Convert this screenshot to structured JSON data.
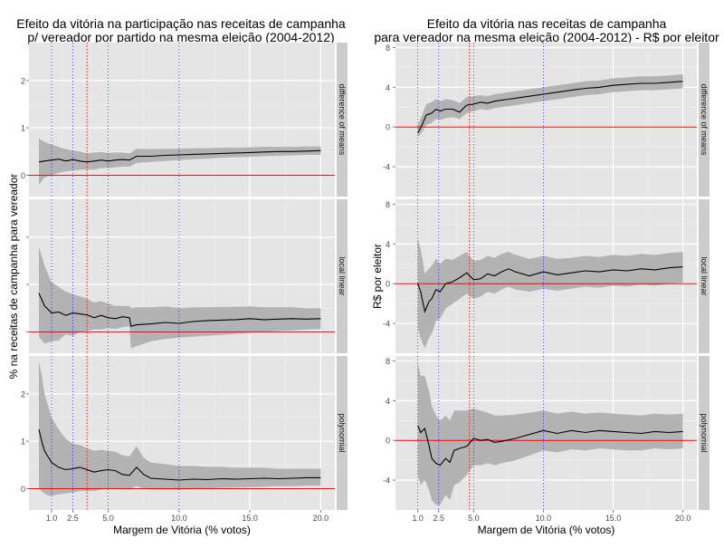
{
  "colors": {
    "panel_bg": "#e5e5e5",
    "grid_major": "#ffffff",
    "grid_minor": "#f2f2f2",
    "strip_bg": "#cccccc",
    "ribbon": "#b3b3b3",
    "line": "#000000",
    "ref_line": "#ff0000",
    "blue_vline": "#4444ff",
    "red_vline": "#ff0000",
    "tick_text": "#4d4d4d"
  },
  "chart_data": [
    {
      "type": "line",
      "title_line1": "Efeito da vitória na participação nas receitas de campanha",
      "title_line2": "p/ vereador por partido na mesma eleição (2004-2012)",
      "xlabel": "Margem de Vitória (% votos)",
      "ylabel": "% na receitas de campanha para vereador",
      "xlim": [
        -0.6,
        21.0
      ],
      "x_ticks": [
        1.0,
        2.5,
        5.0,
        10.0,
        15.0,
        20.0
      ],
      "x_tick_labels": [
        "1.0",
        "2.5",
        "5.0",
        "10.0",
        "15.0",
        "20.0"
      ],
      "blue_vlines": [
        1.0,
        2.5,
        5.0,
        10.0
      ],
      "red_vlines": [
        3.5
      ],
      "hline": 0,
      "panels": [
        {
          "strip": "difference of means",
          "ylim": [
            -0.45,
            2.8
          ],
          "y_ticks": [
            0,
            1,
            2
          ],
          "y_tick_labels": [
            "0",
            "1",
            "2"
          ],
          "x": [
            0.1,
            0.5,
            1,
            1.5,
            2,
            2.5,
            3,
            3.5,
            4,
            4.5,
            5,
            5.5,
            6,
            6.5,
            7,
            8,
            9,
            10,
            11,
            12,
            13,
            14,
            15,
            16,
            17,
            18,
            19,
            20
          ],
          "y": [
            0.28,
            0.3,
            0.32,
            0.34,
            0.3,
            0.33,
            0.3,
            0.28,
            0.3,
            0.32,
            0.3,
            0.32,
            0.33,
            0.32,
            0.4,
            0.4,
            0.42,
            0.43,
            0.44,
            0.45,
            0.46,
            0.47,
            0.48,
            0.49,
            0.5,
            0.5,
            0.51,
            0.52
          ],
          "lower": [
            -0.2,
            -0.05,
            0.0,
            0.05,
            0.08,
            0.1,
            0.12,
            0.12,
            0.12,
            0.15,
            0.15,
            0.17,
            0.18,
            0.18,
            0.26,
            0.28,
            0.3,
            0.32,
            0.34,
            0.35,
            0.37,
            0.38,
            0.39,
            0.4,
            0.41,
            0.42,
            0.43,
            0.43
          ],
          "upper": [
            0.78,
            0.7,
            0.65,
            0.6,
            0.55,
            0.52,
            0.5,
            0.46,
            0.48,
            0.49,
            0.47,
            0.48,
            0.48,
            0.46,
            0.56,
            0.55,
            0.56,
            0.56,
            0.57,
            0.57,
            0.58,
            0.58,
            0.59,
            0.6,
            0.6,
            0.6,
            0.61,
            0.61
          ]
        },
        {
          "strip": "local linear",
          "ylim": [
            -0.45,
            2.8
          ],
          "y_ticks": [
            0,
            1,
            2
          ],
          "y_tick_labels": [
            "",
            "",
            ""
          ],
          "x": [
            0.1,
            0.5,
            1,
            1.5,
            2,
            2.5,
            3,
            3.5,
            4,
            4.5,
            5,
            5.5,
            6,
            6.5,
            6.6,
            7,
            8,
            9,
            10,
            11,
            12,
            13,
            14,
            15,
            16,
            17,
            18,
            19,
            20
          ],
          "y": [
            0.82,
            0.55,
            0.4,
            0.42,
            0.35,
            0.4,
            0.38,
            0.36,
            0.3,
            0.35,
            0.3,
            0.28,
            0.32,
            0.3,
            0.12,
            0.15,
            0.17,
            0.2,
            0.18,
            0.22,
            0.24,
            0.25,
            0.26,
            0.28,
            0.26,
            0.27,
            0.28,
            0.27,
            0.28
          ],
          "lower": [
            -0.1,
            -0.25,
            -0.2,
            -0.18,
            -0.05,
            -0.08,
            0.0,
            0.02,
            0.05,
            0.05,
            0.08,
            0.06,
            0.1,
            0.12,
            -0.35,
            -0.3,
            -0.2,
            -0.15,
            -0.12,
            -0.1,
            -0.08,
            -0.06,
            -0.04,
            -0.02,
            0.0,
            0.02,
            0.03,
            0.05,
            0.06
          ],
          "upper": [
            1.8,
            1.4,
            1.05,
            0.95,
            0.85,
            0.8,
            0.75,
            0.7,
            0.62,
            0.65,
            0.6,
            0.55,
            0.55,
            0.55,
            0.5,
            0.52,
            0.52,
            0.54,
            0.5,
            0.52,
            0.52,
            0.53,
            0.53,
            0.54,
            0.52,
            0.52,
            0.52,
            0.5,
            0.5
          ]
        },
        {
          "strip": "polynomial",
          "ylim": [
            -0.45,
            2.8
          ],
          "y_ticks": [
            0,
            1,
            2
          ],
          "y_tick_labels": [
            "0",
            "1",
            "2"
          ],
          "x": [
            0.1,
            0.3,
            0.5,
            0.8,
            1,
            1.5,
            2,
            2.5,
            3,
            3.5,
            4,
            4.5,
            5,
            5.5,
            6,
            6.5,
            7,
            7.5,
            8,
            9,
            10,
            11,
            12,
            13,
            14,
            15,
            16,
            17,
            18,
            19,
            20
          ],
          "y": [
            1.25,
            1.0,
            0.8,
            0.65,
            0.55,
            0.45,
            0.4,
            0.42,
            0.45,
            0.4,
            0.35,
            0.38,
            0.4,
            0.38,
            0.3,
            0.28,
            0.45,
            0.3,
            0.22,
            0.2,
            0.18,
            0.2,
            0.19,
            0.21,
            0.2,
            0.21,
            0.22,
            0.21,
            0.22,
            0.23,
            0.23
          ],
          "lower": [
            0.0,
            -0.05,
            -0.1,
            -0.15,
            -0.15,
            -0.12,
            -0.1,
            -0.08,
            -0.05,
            -0.05,
            -0.05,
            -0.02,
            0.0,
            0.0,
            0.0,
            -0.02,
            0.05,
            0.0,
            -0.02,
            -0.02,
            -0.02,
            0.0,
            0.0,
            0.02,
            0.02,
            0.03,
            0.04,
            0.05,
            0.05,
            0.06,
            0.06
          ],
          "upper": [
            2.7,
            2.4,
            2.0,
            1.7,
            1.5,
            1.25,
            1.05,
            0.95,
            0.92,
            0.85,
            0.8,
            0.82,
            0.8,
            0.78,
            0.7,
            0.68,
            0.9,
            0.65,
            0.55,
            0.52,
            0.48,
            0.48,
            0.46,
            0.46,
            0.44,
            0.44,
            0.44,
            0.42,
            0.42,
            0.42,
            0.42
          ]
        }
      ]
    },
    {
      "type": "line",
      "title_line1": "Efeito da vitória nas receitas de campanha",
      "title_line2": "para vereador na mesma eleição (2004-2012) - R$ por eleitor",
      "xlabel": "Margem de Vitória (% votos)",
      "ylabel": "R$ por eleitor",
      "xlim": [
        -0.6,
        21.0
      ],
      "x_ticks": [
        1.0,
        2.5,
        5.0,
        10.0,
        15.0,
        20.0
      ],
      "x_tick_labels": [
        "1.0",
        "2.5",
        "5.0",
        "10.0",
        "15.0",
        "20.0"
      ],
      "blue_vlines": [
        1.0,
        2.5,
        5.0,
        10.0
      ],
      "red_vlines": [
        4.7
      ],
      "hline": 0,
      "panels": [
        {
          "strip": "difference of means",
          "ylim": [
            -7.0,
            8.5
          ],
          "y_ticks": [
            -4,
            0,
            4,
            8
          ],
          "y_tick_labels": [
            "-4",
            "0",
            "4",
            "8"
          ],
          "x": [
            1,
            1.3,
            1.6,
            2,
            2.3,
            2.6,
            3,
            3.5,
            4,
            4.5,
            5,
            5.5,
            6,
            6.5,
            7,
            7.5,
            8,
            9,
            10,
            11,
            12,
            13,
            14,
            15,
            16,
            17,
            18,
            19,
            20
          ],
          "y": [
            -0.6,
            0.2,
            1.2,
            1.4,
            1.8,
            1.6,
            1.8,
            1.8,
            1.5,
            2.2,
            2.3,
            2.5,
            2.4,
            2.6,
            2.7,
            2.8,
            2.9,
            3.1,
            3.3,
            3.5,
            3.7,
            3.9,
            4.0,
            4.2,
            4.3,
            4.4,
            4.4,
            4.5,
            4.6
          ],
          "lower": [
            -1.0,
            -0.5,
            0.2,
            0.4,
            0.8,
            0.7,
            0.9,
            1.0,
            0.8,
            1.4,
            1.6,
            1.8,
            1.7,
            1.9,
            2.0,
            2.1,
            2.2,
            2.4,
            2.6,
            2.8,
            3.0,
            3.2,
            3.3,
            3.5,
            3.6,
            3.7,
            3.7,
            3.8,
            3.9
          ],
          "upper": [
            0.2,
            1.2,
            2.3,
            2.5,
            2.8,
            2.6,
            2.8,
            2.7,
            2.4,
            3.0,
            3.1,
            3.2,
            3.1,
            3.3,
            3.4,
            3.5,
            3.6,
            3.8,
            4.0,
            4.2,
            4.4,
            4.6,
            4.7,
            4.9,
            5.0,
            5.1,
            5.1,
            5.2,
            5.3
          ]
        },
        {
          "strip": "local linear",
          "ylim": [
            -7.0,
            8.5
          ],
          "y_ticks": [
            -4,
            0,
            4,
            8
          ],
          "y_tick_labels": [
            "-4",
            "0",
            "4",
            "8"
          ],
          "x": [
            1,
            1.2,
            1.5,
            1.8,
            2,
            2.3,
            2.6,
            3,
            3.5,
            4,
            4.5,
            5,
            5.5,
            6,
            6.5,
            7,
            7.5,
            8,
            9,
            10,
            11,
            12,
            13,
            14,
            15,
            16,
            17,
            18,
            19,
            20
          ],
          "y": [
            0.0,
            -0.8,
            -2.8,
            -1.8,
            -1.5,
            -0.6,
            -0.8,
            0.0,
            0.2,
            0.6,
            1.1,
            0.4,
            0.5,
            1.0,
            0.8,
            1.2,
            1.5,
            1.2,
            0.8,
            1.2,
            0.9,
            1.1,
            1.3,
            1.2,
            1.4,
            1.3,
            1.5,
            1.4,
            1.6,
            1.7
          ],
          "lower": [
            -4.5,
            -5.5,
            -6.5,
            -5.5,
            -5.0,
            -3.8,
            -3.5,
            -2.5,
            -2.0,
            -1.5,
            -1.0,
            -1.5,
            -1.3,
            -0.8,
            -1.0,
            -0.6,
            -0.3,
            -0.6,
            -0.8,
            -0.5,
            -0.7,
            -0.5,
            -0.3,
            -0.4,
            -0.2,
            -0.3,
            -0.1,
            -0.2,
            0.0,
            0.1
          ],
          "upper": [
            4.5,
            3.5,
            1.0,
            1.5,
            1.8,
            2.5,
            2.0,
            2.5,
            2.4,
            2.8,
            3.2,
            2.3,
            2.4,
            2.8,
            2.6,
            3.0,
            3.2,
            2.9,
            2.5,
            2.8,
            2.5,
            2.6,
            2.8,
            2.7,
            2.9,
            2.8,
            3.0,
            2.9,
            3.1,
            3.2
          ]
        },
        {
          "strip": "polynomial",
          "ylim": [
            -7.0,
            8.5
          ],
          "y_ticks": [
            -4,
            0,
            4,
            8
          ],
          "y_tick_labels": [
            "-4",
            "0",
            "4",
            "8"
          ],
          "x": [
            1,
            1.2,
            1.5,
            1.8,
            2,
            2.3,
            2.6,
            3,
            3.3,
            3.6,
            4,
            4.5,
            5,
            5.5,
            6,
            6.5,
            7,
            8,
            9,
            10,
            11,
            12,
            13,
            14,
            15,
            16,
            17,
            18,
            19,
            20
          ],
          "y": [
            1.5,
            0.8,
            1.2,
            -0.5,
            -1.8,
            -2.3,
            -2.5,
            -1.8,
            -2.2,
            -1.0,
            -0.8,
            -0.6,
            0.2,
            0.0,
            0.1,
            -0.2,
            -0.1,
            0.2,
            0.6,
            1.0,
            0.7,
            1.0,
            0.8,
            1.0,
            0.9,
            0.8,
            0.7,
            0.9,
            0.8,
            0.9
          ],
          "lower": [
            -3.5,
            -4.5,
            -4.0,
            -5.0,
            -6.0,
            -6.5,
            -6.5,
            -5.5,
            -6.0,
            -4.5,
            -4.2,
            -3.5,
            -2.5,
            -2.5,
            -2.3,
            -2.5,
            -2.3,
            -2.0,
            -1.5,
            -1.0,
            -1.2,
            -0.9,
            -1.0,
            -0.8,
            -0.9,
            -1.0,
            -1.0,
            -0.8,
            -0.9,
            -0.8
          ],
          "upper": [
            7.8,
            6.5,
            6.5,
            5.0,
            3.5,
            2.5,
            2.0,
            2.5,
            2.0,
            3.0,
            3.0,
            3.0,
            3.2,
            3.0,
            2.8,
            2.5,
            2.5,
            2.6,
            2.8,
            3.0,
            2.7,
            2.9,
            2.7,
            2.8,
            2.7,
            2.6,
            2.5,
            2.7,
            2.6,
            2.7
          ]
        }
      ]
    }
  ]
}
